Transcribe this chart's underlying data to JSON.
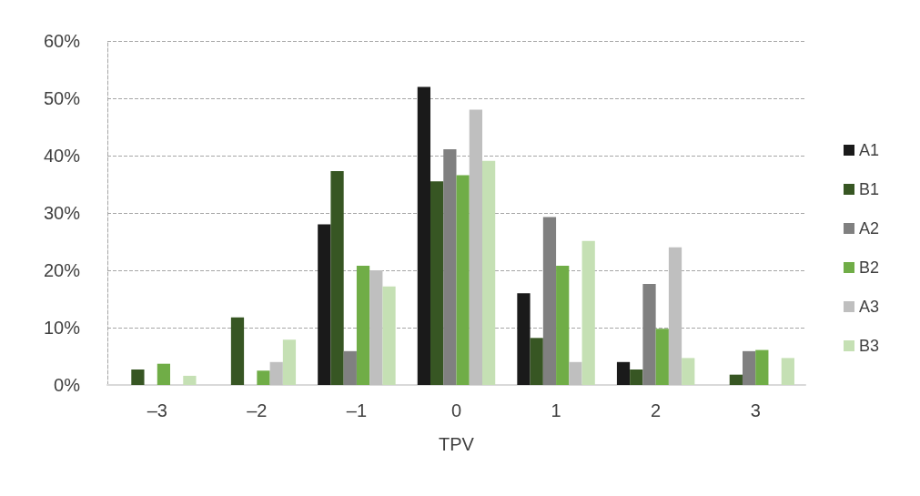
{
  "chart_data": {
    "type": "bar",
    "xlabel": "TPV",
    "categories": [
      "–3",
      "–2",
      "–1",
      "0",
      "1",
      "2",
      "3"
    ],
    "series": [
      {
        "name": "A1",
        "color": "#1a1a1a",
        "values": [
          0,
          0,
          28,
          52,
          16,
          4,
          0
        ]
      },
      {
        "name": "B1",
        "color": "#375623",
        "values": [
          2.7,
          11.8,
          37.3,
          35.5,
          8.2,
          2.7,
          1.8
        ]
      },
      {
        "name": "A2",
        "color": "#808080",
        "values": [
          0,
          0,
          5.9,
          41.1,
          29.3,
          17.6,
          5.9
        ]
      },
      {
        "name": "B2",
        "color": "#70ad47",
        "values": [
          3.7,
          2.5,
          20.8,
          36.6,
          20.8,
          9.8,
          6.1
        ]
      },
      {
        "name": "A3",
        "color": "#bfbfbf",
        "values": [
          0,
          4,
          20,
          48,
          4,
          24,
          0
        ]
      },
      {
        "name": "B3",
        "color": "#c5e0b4",
        "values": [
          1.6,
          7.9,
          17.2,
          39.1,
          25.1,
          4.7,
          4.7
        ]
      }
    ],
    "ylim": [
      0,
      60
    ],
    "yticks": [
      {
        "value": 0,
        "label": "0%"
      },
      {
        "value": 10,
        "label": "10%"
      },
      {
        "value": 20,
        "label": "20%"
      },
      {
        "value": 30,
        "label": "30%"
      },
      {
        "value": 40,
        "label": "40%"
      },
      {
        "value": 50,
        "label": "50%"
      },
      {
        "value": 60,
        "label": "60%"
      }
    ],
    "grid": "y",
    "legend": "right"
  }
}
